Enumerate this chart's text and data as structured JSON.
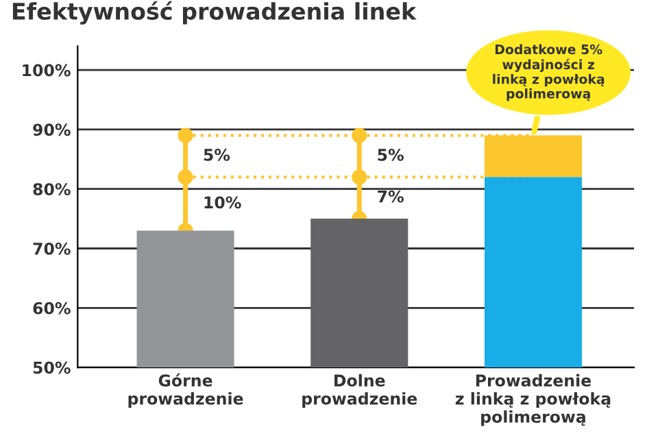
{
  "chart_data": {
    "type": "bar",
    "title": "Efektywność prowadzenia linek",
    "categories": [
      "Górne\nprowadzenie",
      "Dolne\nprowadzenie",
      "Prowadzenie\nz linką z powłoką\npolimerową"
    ],
    "series": [
      {
        "colors": [
          "#939598",
          "#646466",
          "#18ade6"
        ],
        "values": [
          73,
          75,
          82
        ]
      },
      {
        "color": "#fcc62e",
        "values": [
          null,
          null,
          7
        ],
        "base": [
          null,
          null,
          82
        ]
      }
    ],
    "ylim": [
      50,
      104
    ],
    "yticks": [
      {
        "value": 50,
        "label": "50%"
      },
      {
        "value": 60,
        "label": "60%"
      },
      {
        "value": 70,
        "label": "70%"
      },
      {
        "value": 80,
        "label": "80%"
      },
      {
        "value": 90,
        "label": "90%"
      },
      {
        "value": 100,
        "label": "100%"
      }
    ],
    "grid": "y",
    "ref_lines": [
      {
        "axis": "y",
        "value": 89,
        "color": "#fcc62e",
        "line_style": "dotted"
      },
      {
        "axis": "y",
        "value": 82,
        "color": "#fcc62e",
        "line_style": "dotted"
      }
    ],
    "annotations": [
      "5%",
      "10%",
      "5%",
      "7%",
      "Dodatkowe 5%\nwydajności z\nlinką z powłoką\npolimerową"
    ]
  }
}
